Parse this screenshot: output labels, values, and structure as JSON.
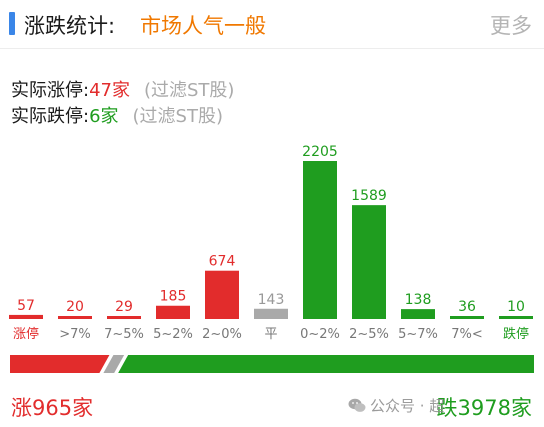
{
  "header": {
    "title": "涨跌统计:",
    "mood": "市场人气一般",
    "more": "更多"
  },
  "stats": {
    "limit_up_label": "实际涨停:",
    "limit_up_value": "47家",
    "limit_down_label": "实际跌停:",
    "limit_down_value": "6家",
    "note": "(过滤ST股)"
  },
  "chart_data": {
    "type": "bar",
    "categories": [
      "涨停",
      ">7%",
      "7~5%",
      "5~2%",
      "2~0%",
      "平",
      "0~2%",
      "2~5%",
      "5~7%",
      "7%<",
      "跌停"
    ],
    "values": [
      57,
      20,
      29,
      185,
      674,
      143,
      2205,
      1589,
      138,
      36,
      10
    ],
    "bar_groups": [
      "up",
      "up",
      "up",
      "up",
      "up",
      "flat",
      "down",
      "down",
      "down",
      "down",
      "down"
    ],
    "colors": {
      "up": "#e22c2c",
      "flat": "#a9a9a9",
      "down": "#1f9d1f"
    },
    "title": "",
    "xlabel": "",
    "ylabel": "",
    "ylim": [
      0,
      2205
    ],
    "grid": false
  },
  "breadth": {
    "up_total": "涨965家",
    "down_total": "跌3978家",
    "up_count": 965,
    "flat_count": 143,
    "down_count": 3978
  },
  "watermark": {
    "text": "公众号 · 超"
  },
  "icons": {
    "header_accent": "section-bar-icon",
    "watermark": "wechat-icon"
  }
}
